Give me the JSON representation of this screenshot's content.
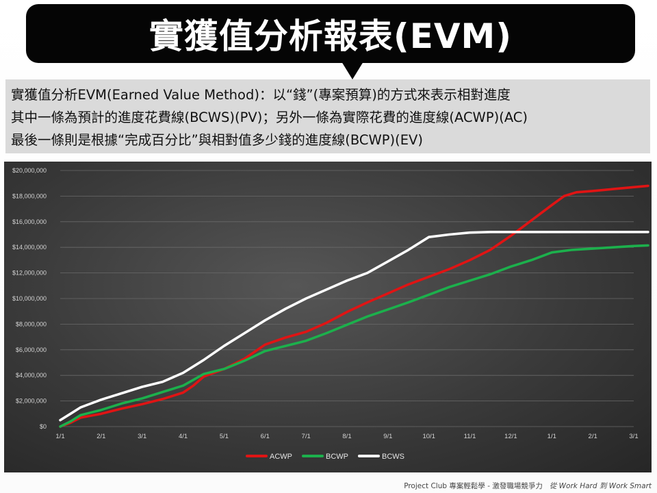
{
  "header": {
    "title": "實獲值分析報表(EVM)"
  },
  "description": {
    "lines": [
      "實獲值分析EVM(Earned Value Method)：以“錢”(專案預算)的方式來表示相對進度",
      "其中一條為預計的進度花費線(BCWS)(PV)；另外一條為實際花費的進度線(ACWP)(AC)",
      "最後一條則是根據“完成百分比”與相對值多少錢的進度線(BCWP)(EV)"
    ]
  },
  "footer": {
    "text": "Project Club 專案輕鬆學 - 激發職場競爭力",
    "tagline": "從 Work Hard 到 Work Smart"
  },
  "chart_data": {
    "type": "line",
    "categories": [
      "1/1",
      "2/1",
      "3/1",
      "4/1",
      "5/1",
      "6/1",
      "7/1",
      "8/1",
      "9/1",
      "10/1",
      "11/1",
      "12/1",
      "1/1",
      "2/1",
      "3/1"
    ],
    "y_ticks": [
      "$0",
      "$2,000,000",
      "$4,000,000",
      "$6,000,000",
      "$8,000,000",
      "$10,000,000",
      "$12,000,000",
      "$14,000,000",
      "$16,000,000",
      "$18,000,000",
      "$20,000,000"
    ],
    "ylim": [
      0,
      20000000
    ],
    "grid": true,
    "legend_position": "bottom",
    "series": [
      {
        "name": "ACWP",
        "color": "#e01414",
        "points": [
          [
            0,
            0
          ],
          [
            0.25,
            300000
          ],
          [
            0.5,
            700000
          ],
          [
            1,
            1000000
          ],
          [
            1.5,
            1400000
          ],
          [
            2,
            1750000
          ],
          [
            2.5,
            2150000
          ],
          [
            3,
            2650000
          ],
          [
            3.25,
            3200000
          ],
          [
            3.5,
            3900000
          ],
          [
            4,
            4500000
          ],
          [
            4.5,
            5300000
          ],
          [
            5,
            6400000
          ],
          [
            5.5,
            6950000
          ],
          [
            6,
            7400000
          ],
          [
            6.5,
            8100000
          ],
          [
            7,
            8950000
          ],
          [
            7.5,
            9700000
          ],
          [
            8,
            10400000
          ],
          [
            8.5,
            11100000
          ],
          [
            9,
            11700000
          ],
          [
            9.5,
            12300000
          ],
          [
            10,
            13000000
          ],
          [
            10.5,
            13800000
          ],
          [
            11,
            14900000
          ],
          [
            11.5,
            16100000
          ],
          [
            12,
            17300000
          ],
          [
            12.3,
            18000000
          ],
          [
            12.6,
            18300000
          ],
          [
            13,
            18400000
          ],
          [
            13.5,
            18550000
          ],
          [
            14,
            18700000
          ],
          [
            14.35,
            18800000
          ]
        ]
      },
      {
        "name": "BCWP",
        "color": "#1cb04c",
        "points": [
          [
            0,
            0
          ],
          [
            0.25,
            400000
          ],
          [
            0.5,
            900000
          ],
          [
            1,
            1300000
          ],
          [
            1.5,
            1800000
          ],
          [
            2,
            2200000
          ],
          [
            2.5,
            2700000
          ],
          [
            3,
            3200000
          ],
          [
            3.5,
            4100000
          ],
          [
            4,
            4500000
          ],
          [
            4.5,
            5150000
          ],
          [
            5,
            5900000
          ],
          [
            5.5,
            6300000
          ],
          [
            6,
            6700000
          ],
          [
            6.5,
            7300000
          ],
          [
            7,
            7950000
          ],
          [
            7.5,
            8600000
          ],
          [
            8,
            9150000
          ],
          [
            8.5,
            9700000
          ],
          [
            9,
            10300000
          ],
          [
            9.5,
            10900000
          ],
          [
            10,
            11400000
          ],
          [
            10.5,
            11900000
          ],
          [
            11,
            12500000
          ],
          [
            11.5,
            13000000
          ],
          [
            12,
            13600000
          ],
          [
            12.5,
            13800000
          ],
          [
            13,
            13900000
          ],
          [
            13.5,
            14000000
          ],
          [
            14,
            14100000
          ],
          [
            14.35,
            14150000
          ]
        ]
      },
      {
        "name": "BCWS",
        "color": "#ffffff",
        "points": [
          [
            0,
            500000
          ],
          [
            0.25,
            1000000
          ],
          [
            0.5,
            1500000
          ],
          [
            1,
            2100000
          ],
          [
            1.5,
            2600000
          ],
          [
            2,
            3100000
          ],
          [
            2.5,
            3500000
          ],
          [
            3,
            4200000
          ],
          [
            3.5,
            5200000
          ],
          [
            4,
            6300000
          ],
          [
            4.5,
            7300000
          ],
          [
            5,
            8300000
          ],
          [
            5.5,
            9200000
          ],
          [
            6,
            10000000
          ],
          [
            6.5,
            10700000
          ],
          [
            7,
            11400000
          ],
          [
            7.5,
            12000000
          ],
          [
            8,
            12900000
          ],
          [
            8.5,
            13800000
          ],
          [
            9,
            14800000
          ],
          [
            9.5,
            15000000
          ],
          [
            10,
            15150000
          ],
          [
            10.5,
            15200000
          ],
          [
            11,
            15200000
          ],
          [
            12,
            15200000
          ],
          [
            13,
            15200000
          ],
          [
            14,
            15200000
          ],
          [
            14.35,
            15200000
          ]
        ]
      }
    ]
  }
}
